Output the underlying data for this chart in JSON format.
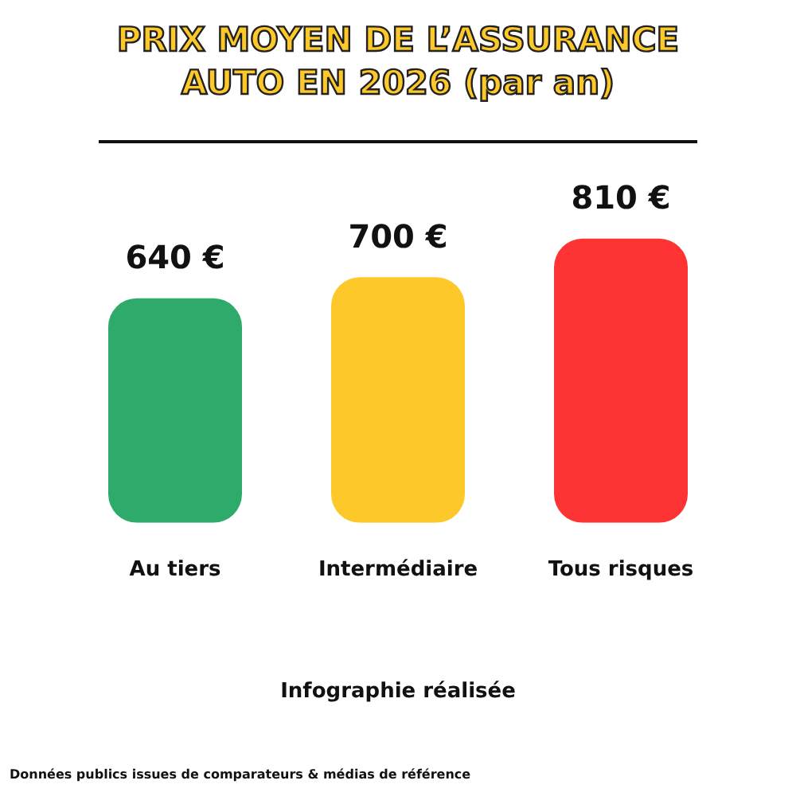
{
  "chart_data": {
    "type": "bar",
    "title": "PRIX MOYEN DE L’ASSURANCE AUTO EN 2026 (par an)",
    "categories": [
      "Au tiers",
      "Intermédiaire",
      "Tous risques"
    ],
    "values": [
      640,
      700,
      810
    ],
    "colors": [
      "#2eaa6a",
      "#fdc82a",
      "#fe3434"
    ],
    "value_labels": [
      "640 €",
      "700 €",
      "810 €"
    ],
    "tick_labels": "x",
    "annotations": [
      "Infographie réalisée",
      "Données publics issues de comparateurs & médias de référence"
    ]
  }
}
